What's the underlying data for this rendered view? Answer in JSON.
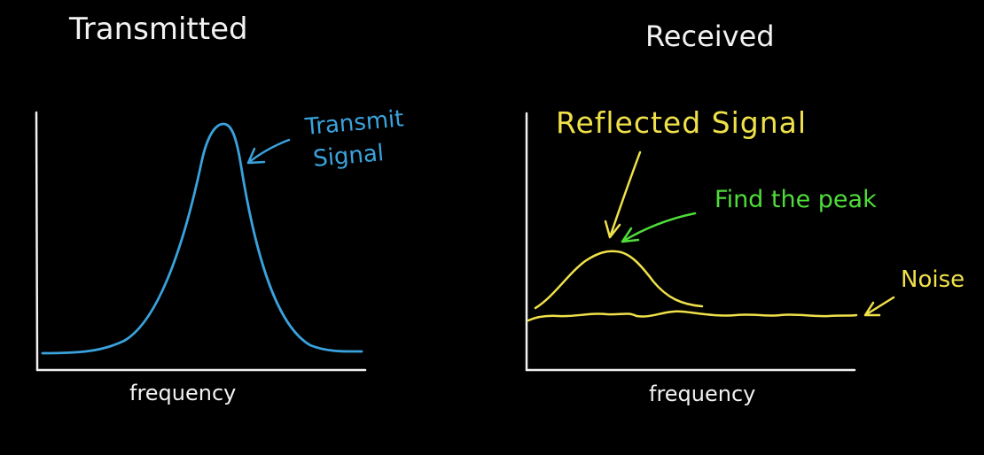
{
  "panels": {
    "transmitted": {
      "title": "Transmitted",
      "xlabel": "frequency",
      "annotation_line1": "Transmit",
      "annotation_line2": "Signal"
    },
    "received": {
      "title": "Received",
      "xlabel": "frequency",
      "reflected_label": "Reflected Signal",
      "peak_label": "Find the peak",
      "noise_label": "Noise"
    }
  },
  "colors": {
    "background": "#000000",
    "ink": "#f2f2f2",
    "transmit": "#3aa2dc",
    "reflected": "#f0e14a",
    "peak": "#4fdc3a"
  }
}
